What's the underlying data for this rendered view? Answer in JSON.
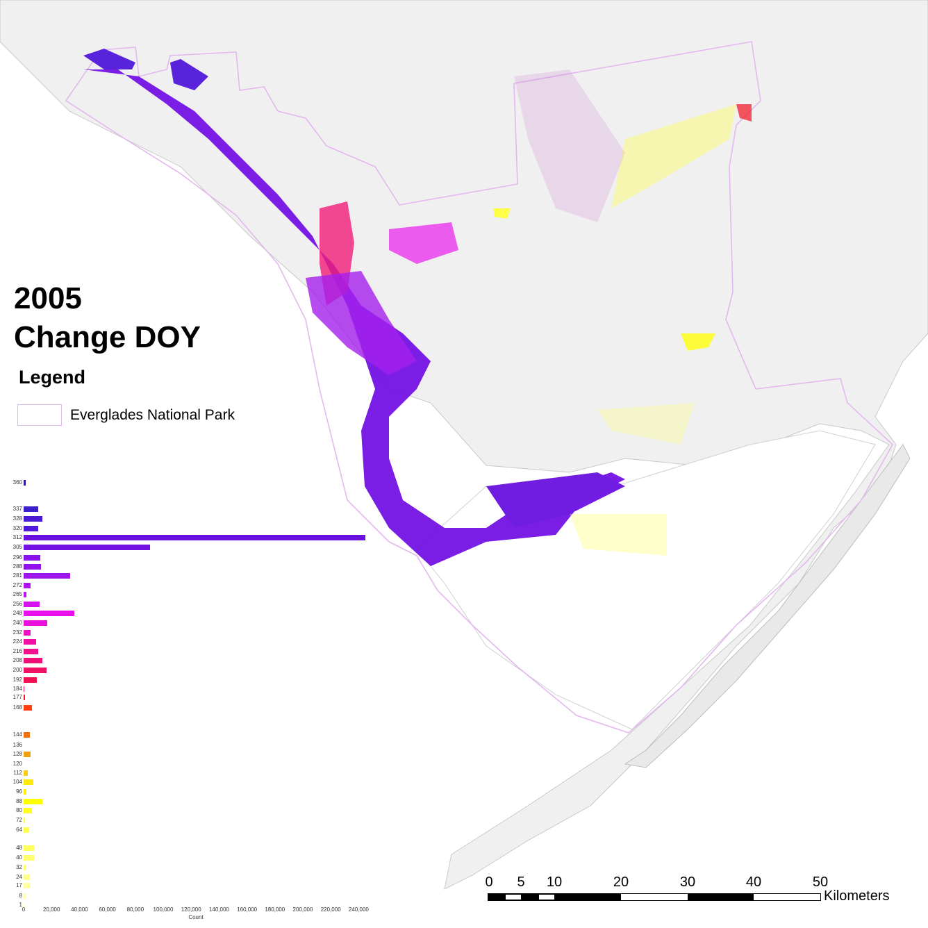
{
  "title": {
    "line1": "2005",
    "line2": "Change DOY"
  },
  "legend": {
    "heading": "Legend",
    "items": [
      {
        "label": "Everglades National Park",
        "swatch_border": "#e3b8ee",
        "swatch_fill": "#ffffff"
      }
    ]
  },
  "scale_bar": {
    "labels": [
      "0",
      "5",
      "10",
      "20",
      "30",
      "40",
      "50"
    ],
    "unit": "Kilometers"
  },
  "colors": {
    "land": "#f0f0f0",
    "water": "#ffffff",
    "coast_outline": "#bdbdbd",
    "park_boundary": "#e3b8ee",
    "deep_purple": "#3b1fc8",
    "violet": "#7a10e0",
    "magenta": "#e010e0",
    "pink_red": "#f01070",
    "orange_red": "#ff4010",
    "orange": "#ffa000",
    "yellow": "#ffff00",
    "pale_yellow": "#ffff80"
  },
  "chart_data": {
    "type": "bar",
    "orientation": "horizontal",
    "title": "2005 Change DOY",
    "xlabel": "Count",
    "ylabel": "",
    "xlim": [
      0,
      250000
    ],
    "x_ticks": [
      "0",
      "20,000",
      "40,000",
      "60,000",
      "80,000",
      "100,000",
      "120,000",
      "140,000",
      "160,000",
      "180,000",
      "200,000",
      "220,000",
      "240,000"
    ],
    "grid": false,
    "categories": [
      "360",
      "337",
      "328",
      "320",
      "312",
      "305",
      "296",
      "288",
      "281",
      "272",
      "265",
      "256",
      "248",
      "240",
      "232",
      "224",
      "216",
      "208",
      "200",
      "192",
      "184",
      "177",
      "168",
      "144",
      "136",
      "128",
      "120",
      "112",
      "104",
      "96",
      "88",
      "80",
      "72",
      "64",
      "48",
      "40",
      "32",
      "24",
      "17",
      "8",
      "1"
    ],
    "values": [
      1500,
      10500,
      13500,
      10500,
      246000,
      91000,
      12000,
      12500,
      33500,
      5000,
      2000,
      11500,
      36500,
      17000,
      5000,
      9000,
      10500,
      13500,
      16500,
      9500,
      500,
      1000,
      6000,
      4500,
      0,
      5000,
      0,
      3000,
      7000,
      2000,
      13500,
      6000,
      1000,
      4000,
      7500,
      7500,
      2000,
      4500,
      5000,
      1500,
      500
    ],
    "bar_colors": [
      "#2a1a9a",
      "#3b1fc8",
      "#4a1bd0",
      "#5018d8",
      "#6a10e0",
      "#7412e4",
      "#8a12e8",
      "#9412ea",
      "#a014ec",
      "#b014ee",
      "#c012f0",
      "#d412f0",
      "#e810ec",
      "#ea10dc",
      "#ee10c0",
      "#f010a4",
      "#f0108c",
      "#f01078",
      "#f01064",
      "#f01050",
      "#f01040",
      "#f02030",
      "#ff4010",
      "#f07010",
      "#f08810",
      "#f0a010",
      "#f8b810",
      "#f8d010",
      "#ffe810",
      "#fff010",
      "#ffff00",
      "#ffff20",
      "#ffff40",
      "#ffff50",
      "#ffff60",
      "#ffff70",
      "#ffff80",
      "#ffff90",
      "#ffffa0",
      "#ffffb0",
      "#ffffc0"
    ],
    "legend": [
      "Everglades National Park"
    ]
  }
}
